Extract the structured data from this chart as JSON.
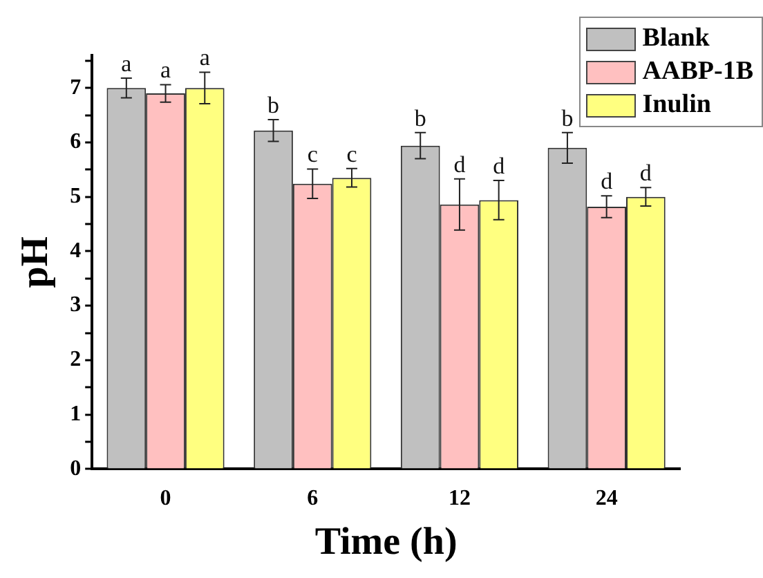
{
  "chart_data": {
    "type": "bar",
    "xlabel": "Time (h)",
    "ylabel": "pH",
    "categories": [
      "0",
      "6",
      "12",
      "24"
    ],
    "series": [
      {
        "name": "Blank",
        "color": "#c0c0c0",
        "values": [
          7.0,
          6.22,
          5.94,
          5.9
        ],
        "errors": [
          0.18,
          0.2,
          0.24,
          0.28
        ]
      },
      {
        "name": "AABP-1B",
        "color": "#ffc0c0",
        "values": [
          6.9,
          5.24,
          4.86,
          4.82
        ],
        "errors": [
          0.16,
          0.27,
          0.47,
          0.2
        ]
      },
      {
        "name": "Inulin",
        "color": "#ffff80",
        "values": [
          7.0,
          5.35,
          4.94,
          5.0
        ],
        "errors": [
          0.29,
          0.17,
          0.36,
          0.17
        ]
      }
    ],
    "ylim": [
      0,
      7.6
    ],
    "yticks": [
      0,
      {
        "value": 0.5,
        "label": null
      },
      1,
      {
        "value": 1.5,
        "label": null
      },
      2,
      {
        "value": 2.5,
        "label": null
      },
      3,
      {
        "value": 3.5,
        "label": null
      },
      4,
      {
        "value": 4.5,
        "label": null
      },
      5,
      {
        "value": 5.5,
        "label": null
      },
      6,
      {
        "value": 6.5,
        "label": null
      },
      7,
      {
        "value": 7.5,
        "label": null
      }
    ],
    "grid": false,
    "legend": "top right",
    "annotations": [
      "a",
      "a",
      "a",
      "b",
      "c",
      "c",
      "b",
      "d",
      "d",
      "b",
      "d",
      "d"
    ]
  }
}
